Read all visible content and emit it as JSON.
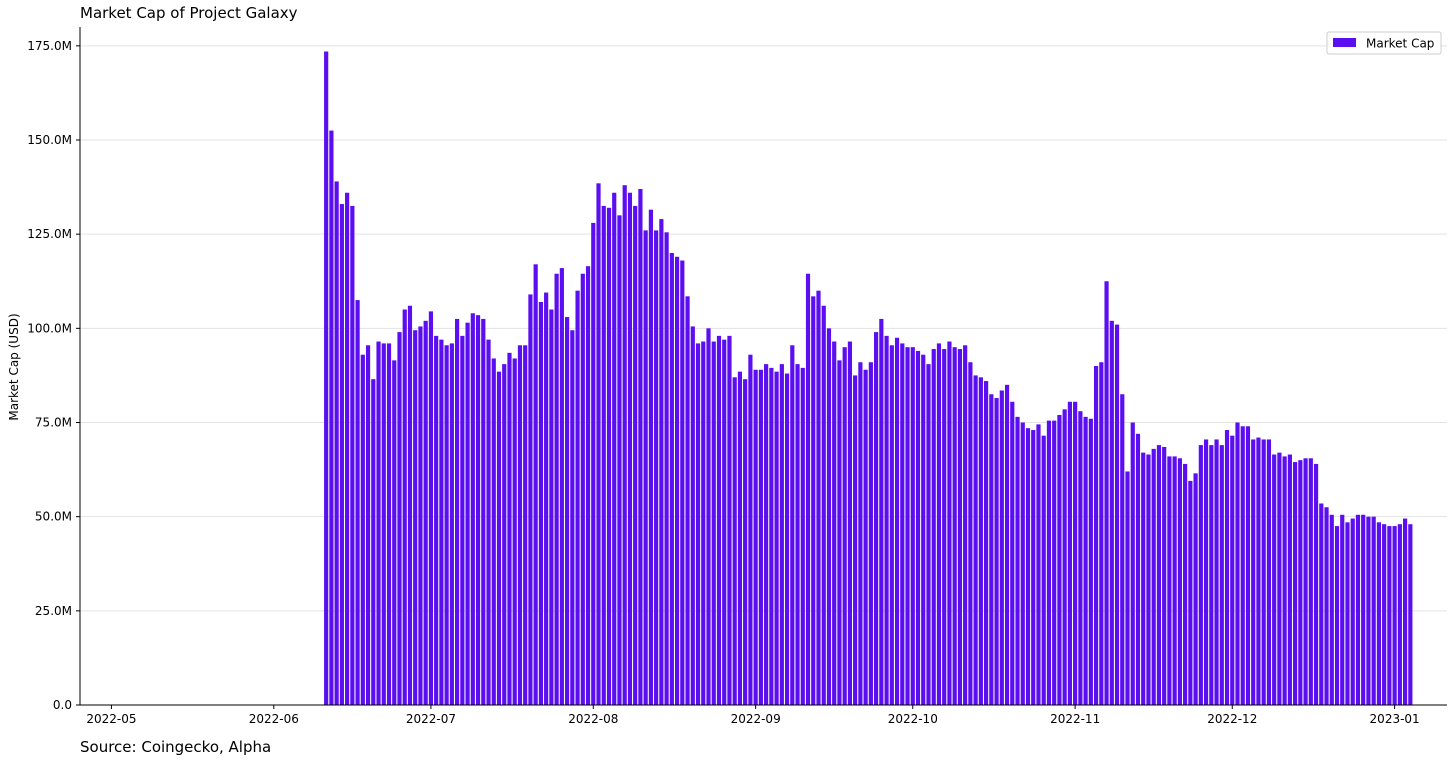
{
  "chart_data": {
    "type": "bar",
    "title": "Market Cap of Project Galaxy",
    "ylabel": "Market Cap (USD)",
    "xlabel": "",
    "source": "Source: Coingecko, Alpha",
    "color": "#5b0ff0",
    "grid": "horizontal",
    "legend_position": "top-right",
    "ylim": [
      0,
      180000000
    ],
    "xlim": [
      "2022-04-25",
      "2023-01-11"
    ],
    "ytick_values": [
      0,
      25000000,
      50000000,
      75000000,
      100000000,
      125000000,
      150000000,
      175000000
    ],
    "ytick_labels": [
      "0.0",
      "25.0M",
      "50.0M",
      "75.0M",
      "100.0M",
      "125.0M",
      "150.0M",
      "175.0M"
    ],
    "xtick_dates": [
      "2022-05-01",
      "2022-06-01",
      "2022-07-01",
      "2022-08-01",
      "2022-09-01",
      "2022-10-01",
      "2022-11-01",
      "2022-12-01",
      "2023-01-01"
    ],
    "xtick_labels": [
      "2022-05",
      "2022-06",
      "2022-07",
      "2022-08",
      "2022-09",
      "2022-10",
      "2022-11",
      "2022-12",
      "2023-01"
    ],
    "series": [
      {
        "name": "Market Cap",
        "start_date": "2022-06-11",
        "values": [
          173.5,
          152.5,
          139,
          133,
          136,
          132.5,
          107.5,
          93,
          95.5,
          86.5,
          96.5,
          96,
          96,
          91.5,
          99,
          105,
          106,
          99.5,
          100.5,
          102,
          104.5,
          98,
          97,
          95.5,
          96,
          102.5,
          98,
          101.5,
          104,
          103.5,
          102.5,
          97,
          92,
          88.5,
          90.5,
          93.5,
          92,
          95.5,
          95.5,
          109,
          117,
          107,
          109.5,
          105,
          114.5,
          116,
          103,
          99.5,
          110,
          114.5,
          116.5,
          128,
          138.5,
          132.5,
          132,
          136,
          130,
          138,
          136,
          132.5,
          137,
          126,
          131.5,
          126,
          129,
          125.5,
          120,
          119,
          118,
          108.5,
          100.5,
          96,
          96.5,
          100,
          96.5,
          98,
          97,
          98,
          87,
          88.5,
          86.5,
          93,
          89,
          89,
          90.5,
          89.5,
          88.5,
          90.5,
          88,
          95.5,
          90.5,
          89.5,
          114.5,
          108.5,
          110,
          106,
          100,
          96.5,
          91.5,
          95,
          96.5,
          87.5,
          91,
          89,
          91,
          99,
          102.5,
          98,
          95.5,
          97.5,
          96,
          95,
          95,
          94,
          93,
          90.5,
          94.5,
          96,
          94.5,
          96.5,
          95,
          94.5,
          95.5,
          91,
          87.5,
          87,
          86,
          82.5,
          81.5,
          83.5,
          85,
          80.5,
          76.5,
          75,
          73.5,
          73,
          74.5,
          71.5,
          75.5,
          75.5,
          77,
          78.5,
          80.5,
          80.5,
          78,
          76.5,
          76,
          90,
          91,
          112.5,
          102,
          101,
          82.5,
          62,
          75,
          72,
          67,
          66.5,
          68,
          69,
          68.5,
          66,
          66,
          65.5,
          64,
          59.5,
          61.5,
          69,
          70.5,
          69,
          70.5,
          69,
          73,
          71.5,
          75,
          74,
          74,
          70.5,
          71,
          70.5,
          70.5,
          66.5,
          67,
          66,
          66.5,
          64.5,
          65,
          65.5,
          65.5,
          64,
          53.5,
          52.5,
          50.5,
          47.5,
          50.5,
          48.5,
          49.5,
          50.5,
          50.5,
          50,
          50,
          48.5,
          48,
          47.5,
          47.5,
          48,
          49.5,
          48
        ]
      }
    ],
    "value_unit_multiplier": 1000000
  }
}
